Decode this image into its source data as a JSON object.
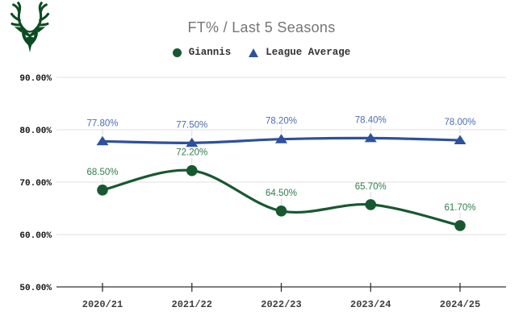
{
  "header": {
    "title": "FT% / Last 5 Seasons",
    "logo_name": "milwaukee-bucks-logo"
  },
  "colors": {
    "giannis_green": "#17592f",
    "league_blue": "#2e519d",
    "giannis_label": "#2e7d4b",
    "league_label": "#4a6db5",
    "title_text": "#757575",
    "legend_text": "#333333",
    "axis_text": "#111111",
    "xaxis_text": "#3c3c3c",
    "gridline": "#e2e2e2",
    "axis_line": "#333333",
    "stem": "#d9d9d9",
    "logo_green": "#0b4c21"
  },
  "chart_data": {
    "type": "line",
    "title": "FT% / Last 5 Seasons",
    "categories": [
      "2020/21",
      "2021/22",
      "2022/23",
      "2023/24",
      "2024/25"
    ],
    "series": [
      {
        "name": "Giannis",
        "marker": "circle",
        "color": "#17592f",
        "label_color": "#2e7d4b",
        "values": [
          68.5,
          72.2,
          64.5,
          65.7,
          61.7
        ],
        "labels": [
          "68.50%",
          "72.20%",
          "64.50%",
          "65.70%",
          "61.70%"
        ]
      },
      {
        "name": "League Average",
        "marker": "triangle",
        "color": "#2e519d",
        "label_color": "#4a6db5",
        "values": [
          77.8,
          77.5,
          78.2,
          78.4,
          78.0
        ],
        "labels": [
          "77.80%",
          "77.50%",
          "78.20%",
          "78.40%",
          "78.00%"
        ]
      }
    ],
    "y_ticks": {
      "labels": [
        "90.00%",
        "80.00%",
        "70.00%",
        "60.00%",
        "50.00%"
      ],
      "values": [
        90,
        80,
        70,
        60,
        50
      ]
    },
    "ylim": [
      50,
      90
    ],
    "xlabel": "",
    "ylabel": "",
    "grid": "horizontal",
    "legend_position": "top",
    "data_labels": true
  }
}
